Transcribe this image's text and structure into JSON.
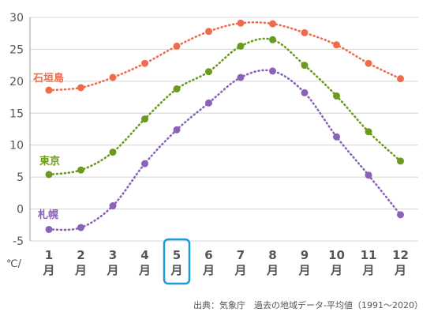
{
  "chart_data": {
    "type": "line",
    "categories": [
      "1",
      "2",
      "3",
      "4",
      "5",
      "6",
      "7",
      "8",
      "9",
      "10",
      "11",
      "12"
    ],
    "category_suffix": "月",
    "unit_label": "℃/",
    "ylim": [
      -5,
      30
    ],
    "yticks": [
      -5,
      0,
      5,
      10,
      15,
      20,
      25,
      30
    ],
    "grid": true,
    "highlight_category": "5",
    "highlight_color": "#1a9bd7",
    "series": [
      {
        "name": "石垣島",
        "color": "#ee6c4d",
        "values": [
          18.6,
          19.0,
          20.6,
          22.8,
          25.5,
          27.8,
          29.1,
          29.0,
          27.6,
          25.7,
          22.8,
          20.4
        ]
      },
      {
        "name": "東京",
        "color": "#6b9a1f",
        "values": [
          5.4,
          6.1,
          8.9,
          14.1,
          18.8,
          21.5,
          25.5,
          26.5,
          22.5,
          17.7,
          12.1,
          7.5
        ]
      },
      {
        "name": "札幌",
        "color": "#8a63b8",
        "values": [
          -3.2,
          -2.9,
          0.5,
          7.1,
          12.4,
          16.6,
          20.6,
          21.6,
          18.2,
          11.3,
          5.3,
          -0.9
        ]
      }
    ],
    "source": "出典：気象庁　過去の地域データ-平均値（1991〜2020）"
  }
}
